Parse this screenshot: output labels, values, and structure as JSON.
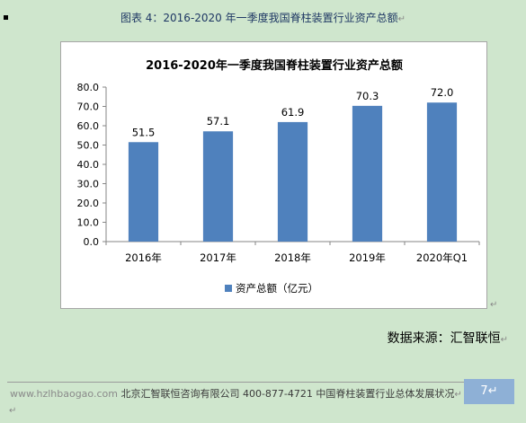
{
  "caption": "图表 4：2016-2020 年一季度我国脊柱装置行业资产总额",
  "source_label": "数据来源：汇智联恒",
  "footer": {
    "url": "www.hzlhbaogao.com",
    "company": "北京汇智联恒咨询有限公司",
    "phone": "400-877-4721",
    "doc_title": "中国脊柱装置行业总体发展状况",
    "page_number": "7"
  },
  "paragraph_mark": "↵",
  "colors": {
    "bar": "#4f81bd",
    "page_bg": "#cfe6cd",
    "page_badge": "#8eb0d6"
  },
  "chart_data": {
    "type": "bar",
    "title": "2016-2020年一季度我国脊柱装置行业资产总额",
    "categories": [
      "2016年",
      "2017年",
      "2018年",
      "2019年",
      "2020年Q1"
    ],
    "series": [
      {
        "name": "资产总额（亿元）",
        "values": [
          51.5,
          57.1,
          61.9,
          70.3,
          72.0
        ]
      }
    ],
    "data_labels": [
      "51.5",
      "57.1",
      "61.9",
      "70.3",
      "72.0"
    ],
    "y_ticks": [
      "0.0",
      "10.0",
      "20.0",
      "30.0",
      "40.0",
      "50.0",
      "60.0",
      "70.0",
      "80.0"
    ],
    "ylim": [
      0,
      80
    ],
    "grid": false,
    "legend_position": "bottom"
  }
}
